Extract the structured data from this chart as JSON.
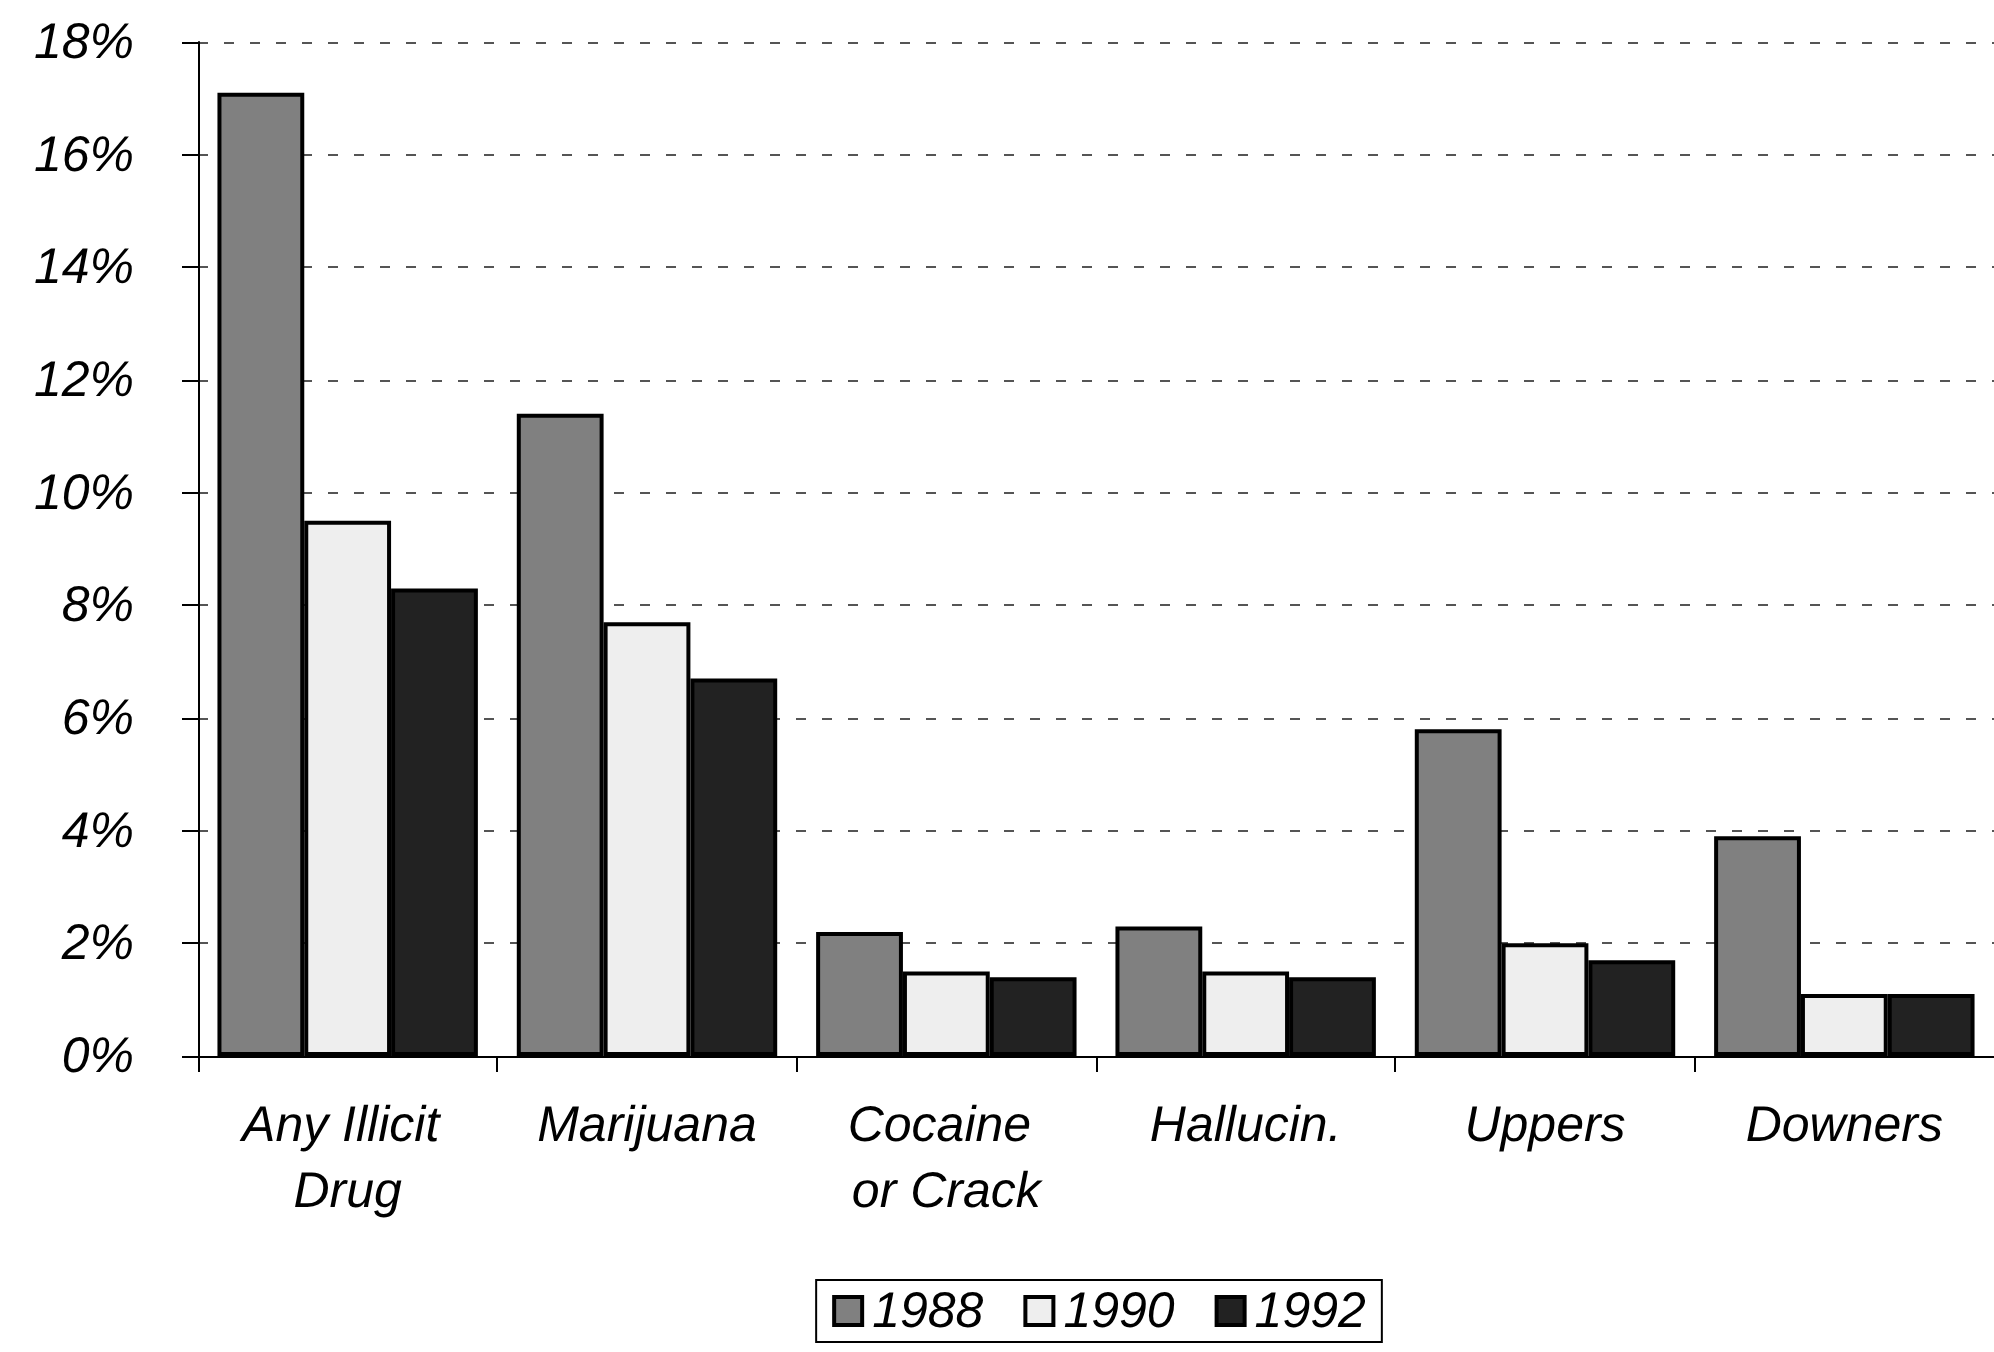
{
  "chart_data": {
    "type": "bar",
    "categories": [
      "Any Illicit Drug",
      "Marijuana",
      "Cocaine or Crack",
      "Hallucin.",
      "Uppers",
      "Downers"
    ],
    "series": [
      {
        "name": "1988",
        "color": "#808080",
        "values": [
          17.1,
          11.4,
          2.2,
          2.3,
          5.8,
          3.9
        ]
      },
      {
        "name": "1990",
        "color": "#eeeeee",
        "values": [
          9.5,
          7.7,
          1.5,
          1.5,
          2.0,
          1.1
        ]
      },
      {
        "name": "1992",
        "color": "#222222",
        "values": [
          8.3,
          6.7,
          1.4,
          1.4,
          1.7,
          1.1
        ]
      }
    ],
    "ylim": [
      0,
      18
    ],
    "yticks": [
      {
        "value": 0,
        "label": "0%"
      },
      {
        "value": 2,
        "label": "2%"
      },
      {
        "value": 4,
        "label": "4%"
      },
      {
        "value": 6,
        "label": "6%"
      },
      {
        "value": 8,
        "label": "8%"
      },
      {
        "value": 10,
        "label": "10%"
      },
      {
        "value": 12,
        "label": "12%"
      },
      {
        "value": 14,
        "label": "14%"
      },
      {
        "value": 16,
        "label": "16%"
      },
      {
        "value": 18,
        "label": "18%"
      }
    ],
    "grid": "y",
    "legend": "bottom"
  }
}
